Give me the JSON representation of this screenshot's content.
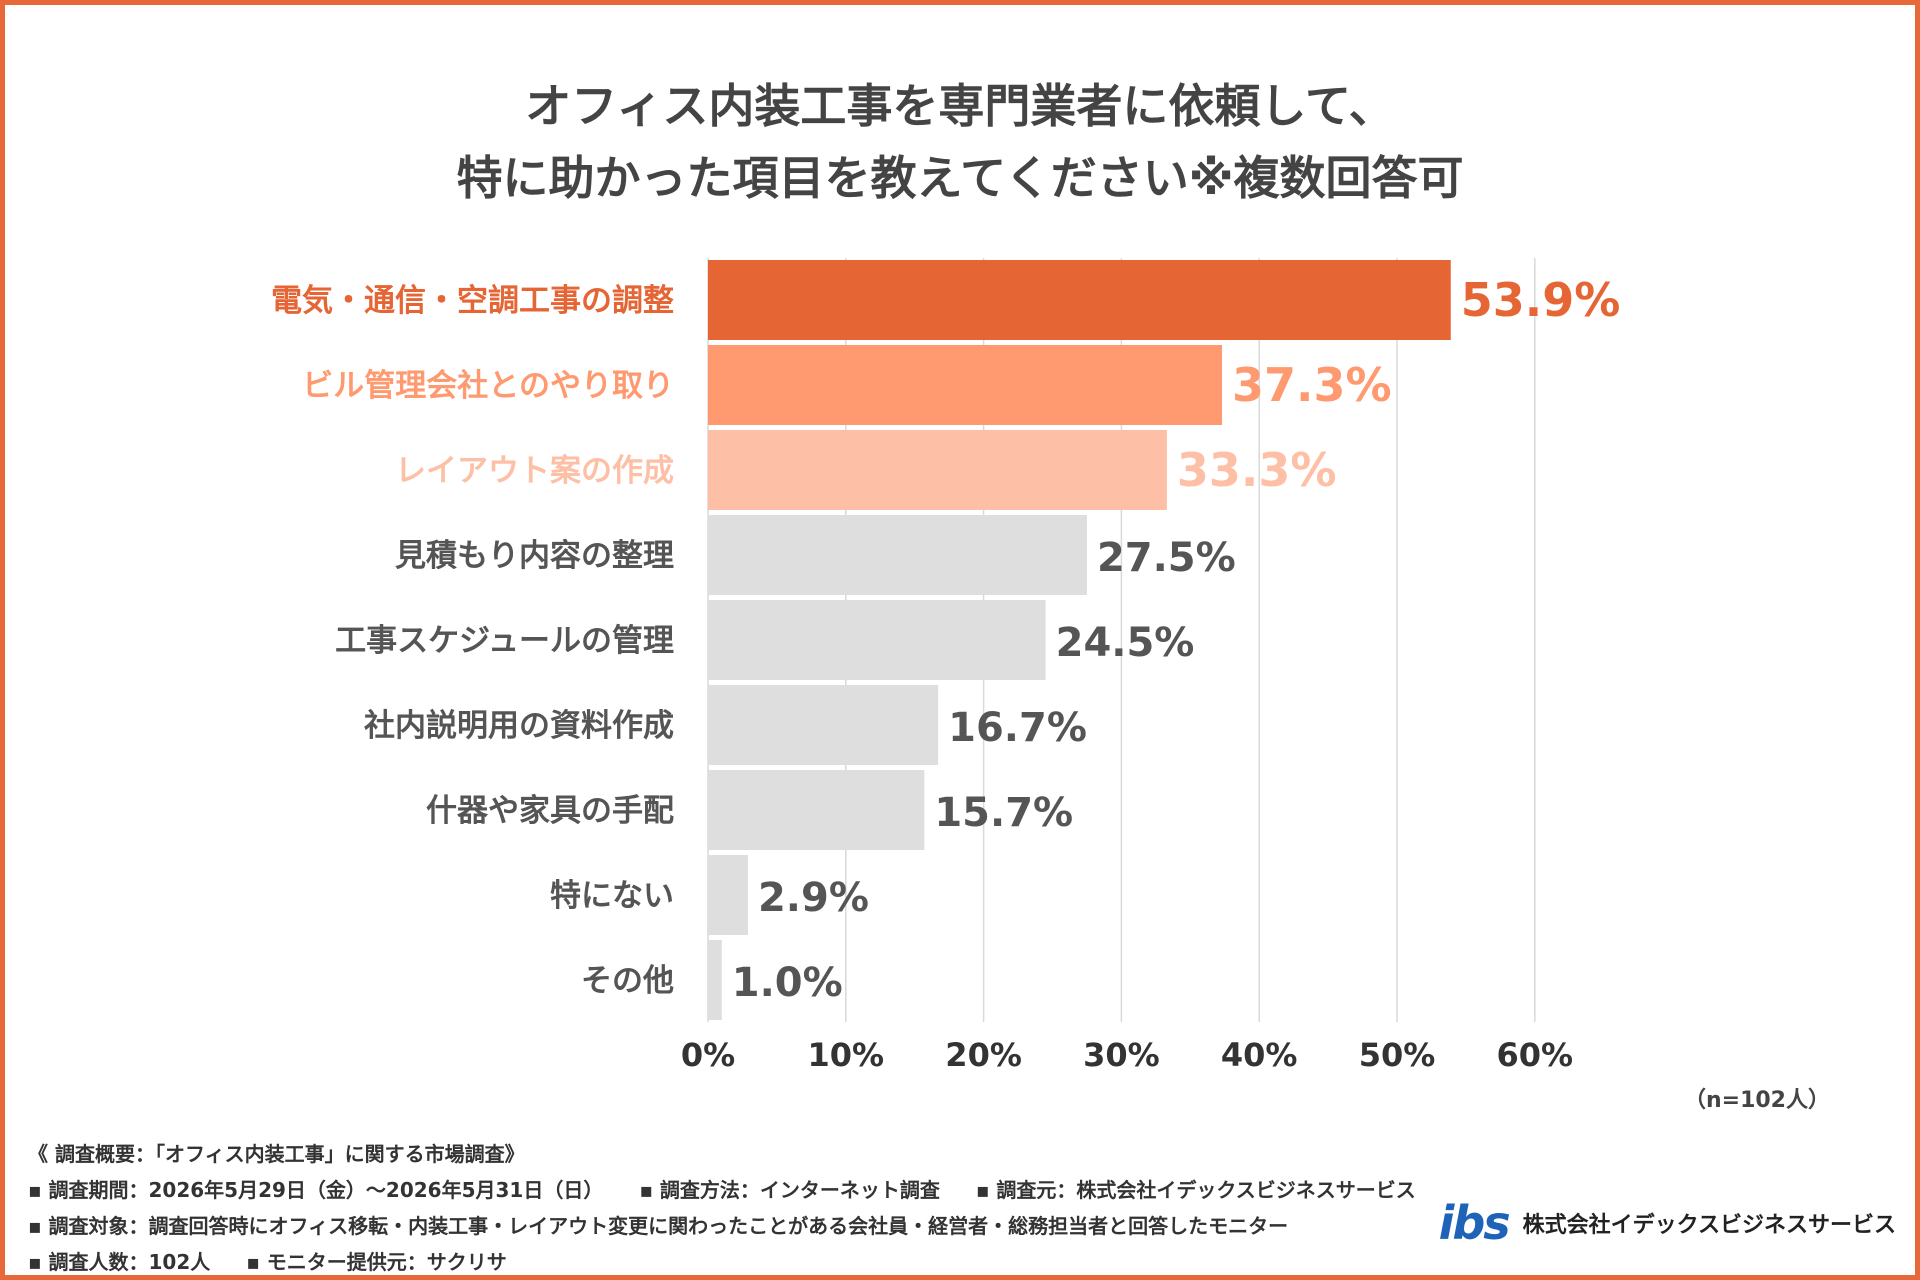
{
  "title_lines": [
    "オフィス内装工事を専門業者に依頼して、",
    "特に助かった項目を教えてください※複数回答可"
  ],
  "chart_data": {
    "type": "bar",
    "orientation": "horizontal",
    "title": "オフィス内装工事を専門業者に依頼して、特に助かった項目を教えてください※複数回答可",
    "categories": [
      "電気・通信・空調工事の調整",
      "ビル管理会社とのやり取り",
      "レイアウト案の作成",
      "見積もり内容の整理",
      "工事スケジュールの管理",
      "社内説明用の資料作成",
      "什器や家具の手配",
      "特にない",
      "その他"
    ],
    "values": [
      53.9,
      37.3,
      33.3,
      27.5,
      24.5,
      16.7,
      15.7,
      2.9,
      1.0
    ],
    "value_labels": [
      "53.9%",
      "37.3%",
      "33.3%",
      "27.5%",
      "24.5%",
      "16.7%",
      "15.7%",
      "2.9%",
      "1.0%"
    ],
    "xlim": [
      0,
      60
    ],
    "xticks": [
      0,
      10,
      20,
      30,
      40,
      50,
      60
    ],
    "xtick_labels": [
      "0%",
      "10%",
      "20%",
      "30%",
      "40%",
      "50%",
      "60%"
    ],
    "grid": true,
    "colors": {
      "bars": [
        "#E56634",
        "#FF9A70",
        "#FDC0A6",
        "#DEDEDE",
        "#DEDEDE",
        "#DEDEDE",
        "#DEDEDE",
        "#DEDEDE",
        "#DEDEDE"
      ],
      "labels": [
        "#E56634",
        "#FF9A70",
        "#FDC0A6",
        "#555555",
        "#555555",
        "#555555",
        "#555555",
        "#555555",
        "#555555"
      ]
    }
  },
  "sample_note": "（n=102人）",
  "notes": {
    "summary": "《 調査概要：「オフィス内装工事」に関する市場調査》",
    "period": "▪ 調査期間：2026年5月29日（金）〜2026年5月31日（日）",
    "method": "▪ 調査方法：インターネット調査",
    "source": "▪ 調査元：株式会社イデックスビジネスサービス",
    "target": "▪ 調査対象：調査回答時にオフィス移転・内装工事・レイアウト変更に関わったことがある会社員・経営者・総務担当者と回答したモニター",
    "count": "▪ 調査人数：102人",
    "provider": "▪ モニター提供元：サクリサ"
  },
  "logo": {
    "mark": "ibs",
    "company": "株式会社イデックスビジネスサービス",
    "color": "#1E63B8"
  }
}
